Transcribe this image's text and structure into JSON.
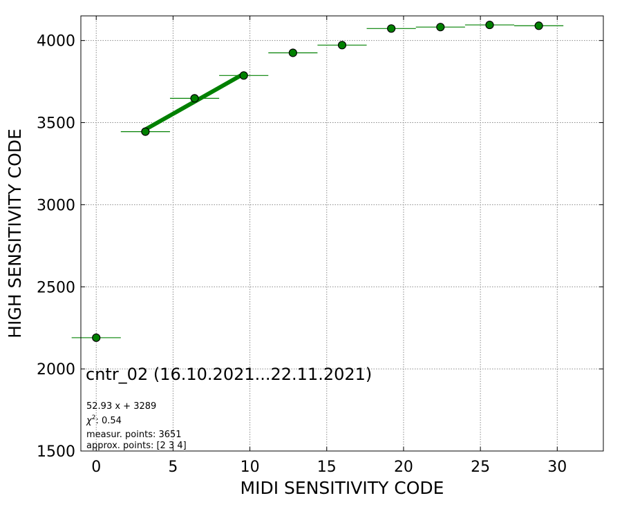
{
  "chart_data": {
    "type": "scatter",
    "xlabel": "MIDI SENSITIVITY CODE",
    "ylabel": "HIGH SENSITIVITY CODE",
    "xlim": [
      -1,
      33
    ],
    "ylim": [
      1500,
      4150
    ],
    "xticks": [
      0,
      5,
      10,
      15,
      20,
      25,
      30
    ],
    "yticks": [
      1500,
      2000,
      2500,
      3000,
      3500,
      4000
    ],
    "grid": true,
    "grid_style": "dotted",
    "colors": {
      "marker": "#008000",
      "marker_edge": "#000000",
      "fit_line": "#008000",
      "error_bar": "#008000"
    },
    "series": [
      {
        "points": [
          {
            "x": 0.0,
            "y": 2190,
            "xerr": 1.6
          },
          {
            "x": 3.2,
            "y": 3445,
            "xerr": 1.6
          },
          {
            "x": 6.4,
            "y": 3648,
            "xerr": 1.6
          },
          {
            "x": 9.6,
            "y": 3787,
            "xerr": 1.6
          },
          {
            "x": 12.8,
            "y": 3925,
            "xerr": 1.6
          },
          {
            "x": 16.0,
            "y": 3972,
            "xerr": 1.6
          },
          {
            "x": 19.2,
            "y": 4073,
            "xerr": 1.6
          },
          {
            "x": 22.4,
            "y": 4082,
            "xerr": 1.6
          },
          {
            "x": 25.6,
            "y": 4095,
            "xerr": 1.6
          },
          {
            "x": 28.8,
            "y": 4090,
            "xerr": 1.6
          }
        ]
      }
    ],
    "fit": {
      "slope": 52.93,
      "intercept": 3289,
      "x_range": [
        3.2,
        9.6
      ]
    },
    "annotations": {
      "title": "cntr_02 (16.10.2021...22.11.2021)",
      "equation": "52.93 x + 3289",
      "chi2_prefix": "χ",
      "chi2_exponent": "2",
      "chi2_value": ": 0.54",
      "measur_points": "measur. points: 3651",
      "approx_points": "approx. points: [2 3 4]"
    }
  }
}
